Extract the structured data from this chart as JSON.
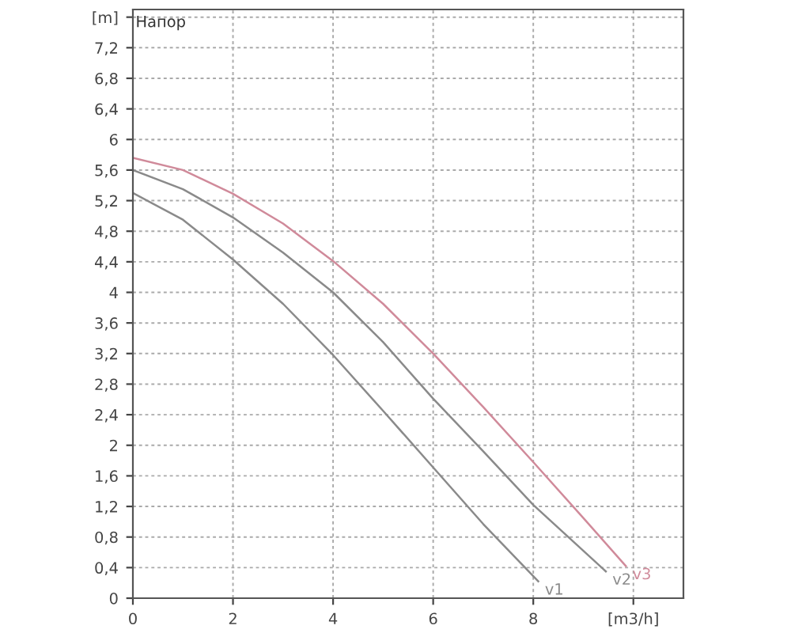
{
  "chart_data": {
    "type": "line",
    "title": "Напор",
    "xlim": [
      0,
      11
    ],
    "ylim": [
      0,
      7.7
    ],
    "xticks": [
      0,
      2,
      4,
      6,
      8,
      {
        "value": 10,
        "label": "[m3/h]"
      }
    ],
    "yticks": [
      0,
      {
        "value": 0.4,
        "label": "0,4"
      },
      {
        "value": 0.8,
        "label": "0,8"
      },
      {
        "value": 1.2,
        "label": "1,2"
      },
      {
        "value": 1.6,
        "label": "1,6"
      },
      2,
      {
        "value": 2.4,
        "label": "2,4"
      },
      {
        "value": 2.8,
        "label": "2,8"
      },
      {
        "value": 3.2,
        "label": "3,2"
      },
      {
        "value": 3.6,
        "label": "3,6"
      },
      4,
      {
        "value": 4.4,
        "label": "4,4"
      },
      {
        "value": 4.8,
        "label": "4,8"
      },
      {
        "value": 5.2,
        "label": "5,2"
      },
      {
        "value": 5.6,
        "label": "5,6"
      },
      6,
      {
        "value": 6.4,
        "label": "6,4"
      },
      {
        "value": 6.8,
        "label": "6,8"
      },
      {
        "value": 7.2,
        "label": "7,2"
      },
      {
        "value": 7.6,
        "label": "[m]"
      }
    ],
    "grid": true,
    "line_style": "solid",
    "series": [
      {
        "name": "v1",
        "color": "#8a8a8a",
        "x": [
          0,
          1,
          2,
          3,
          4,
          5,
          6,
          7,
          8.1
        ],
        "values": [
          5.3,
          4.95,
          4.43,
          3.85,
          3.18,
          2.45,
          1.71,
          0.97,
          0.22
        ]
      },
      {
        "name": "v2",
        "color": "#8a8a8a",
        "x": [
          0,
          1,
          2,
          3,
          4,
          5,
          6,
          7,
          8,
          9.45
        ],
        "values": [
          5.6,
          5.35,
          4.98,
          4.52,
          4.0,
          3.35,
          2.61,
          1.92,
          1.22,
          0.35
        ]
      },
      {
        "name": "v3",
        "color": "#d08a9a",
        "x": [
          0,
          1,
          2,
          3,
          4,
          5,
          6,
          7,
          8,
          9,
          9.85
        ],
        "values": [
          5.76,
          5.6,
          5.29,
          4.9,
          4.41,
          3.85,
          3.2,
          2.5,
          1.78,
          1.05,
          0.42
        ]
      }
    ]
  }
}
